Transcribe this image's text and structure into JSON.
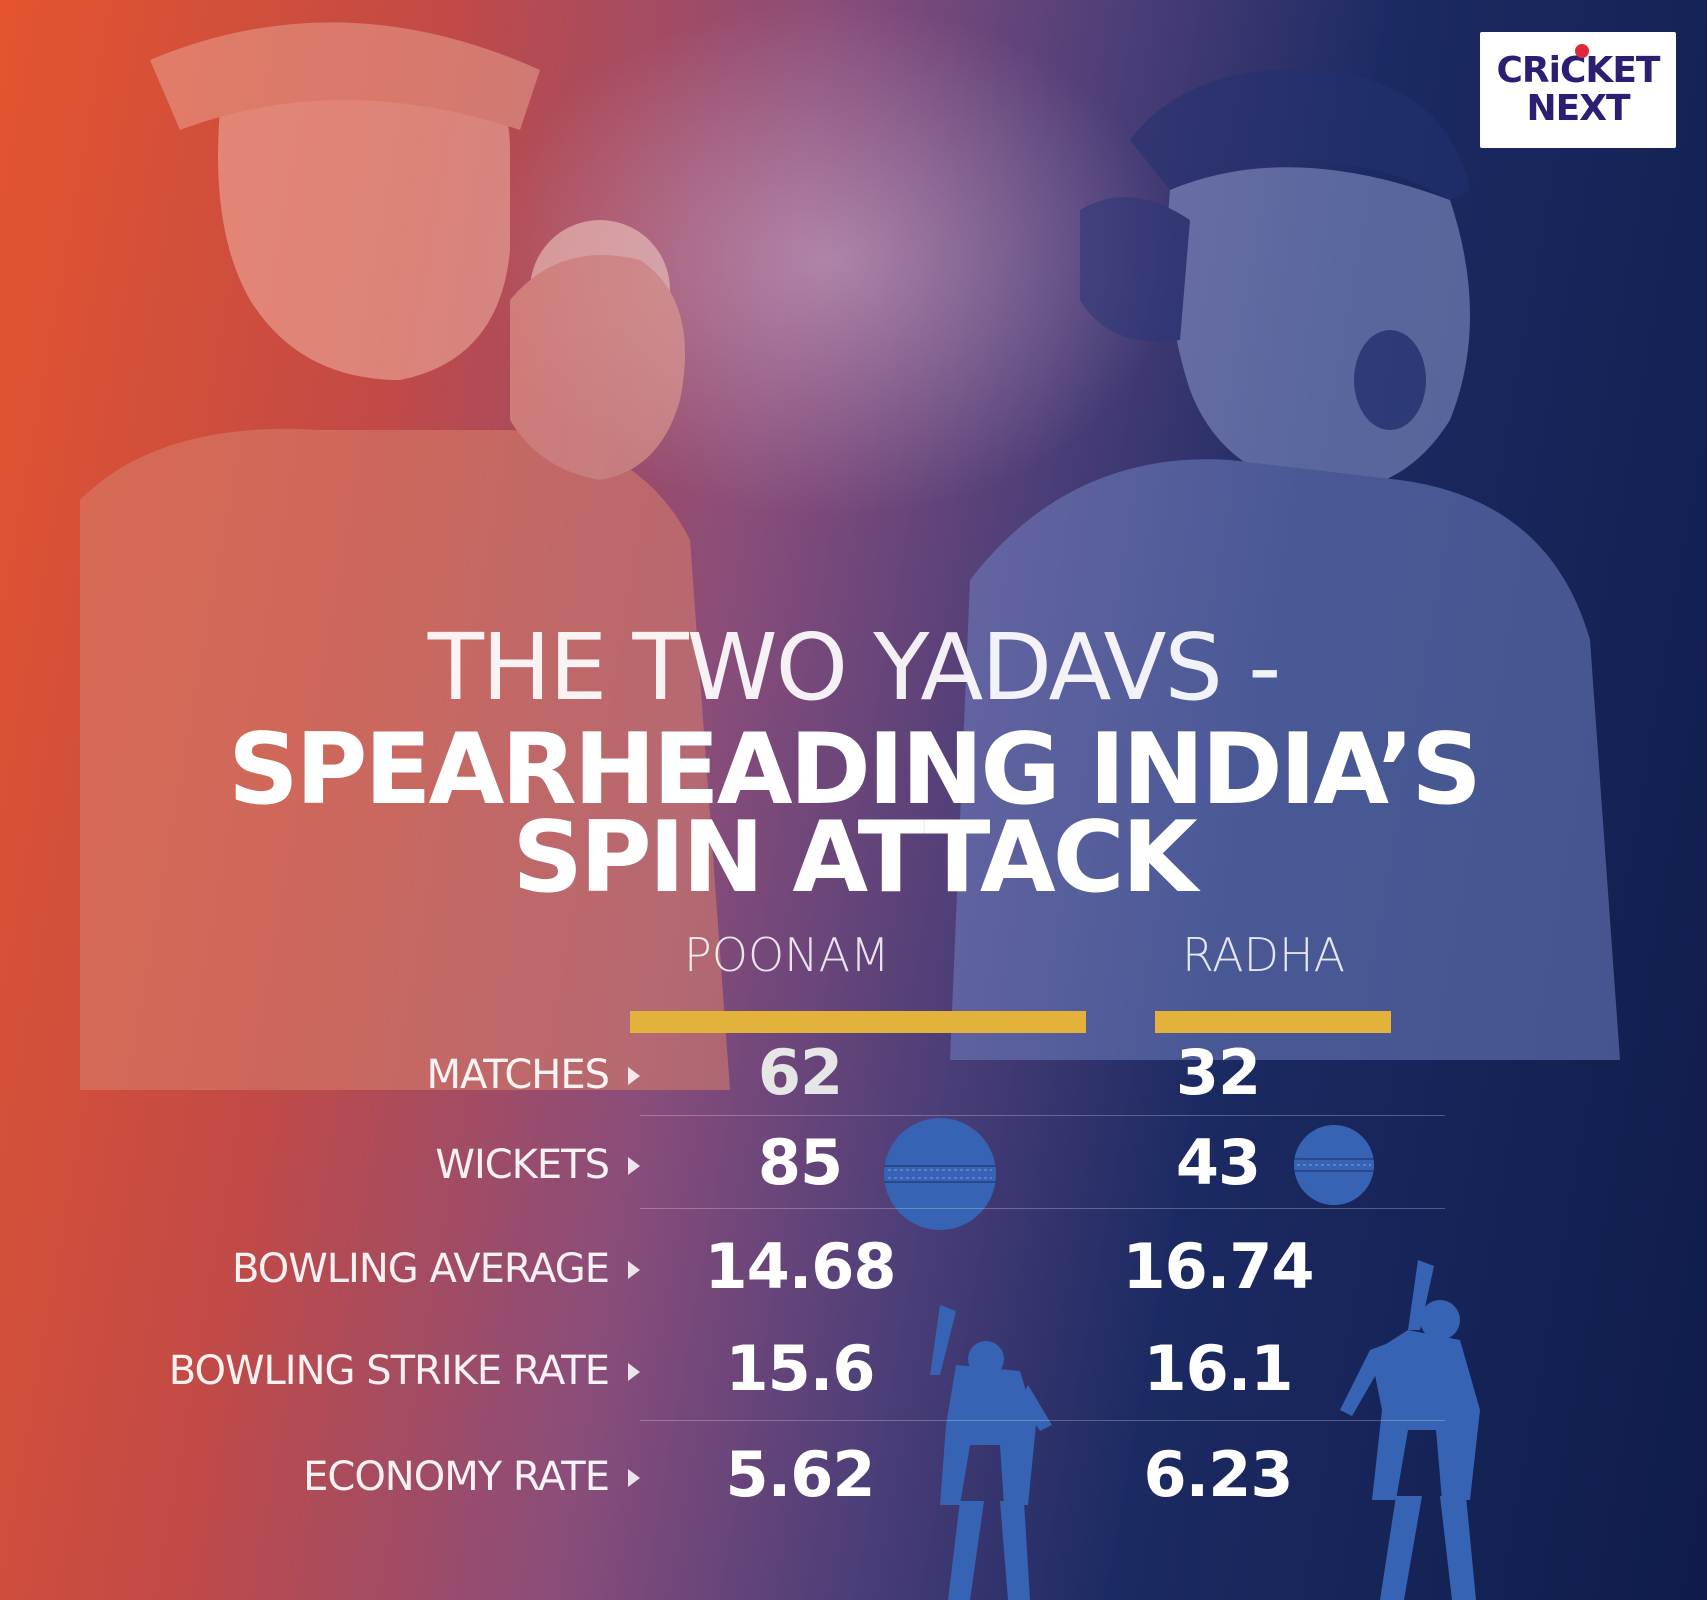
{
  "brand": {
    "logo_line1": "CRiCKET",
    "logo_line2": "NEXT"
  },
  "headline": {
    "line1": "THE TWO YADAVS -",
    "line2": "SPEARHEADING INDIA’S",
    "line3": "SPIN ATTACK"
  },
  "players": {
    "left": "POONAM",
    "right": "RADHA"
  },
  "stats": [
    {
      "label": "MATCHES",
      "left": "62",
      "right": "32"
    },
    {
      "label": "WICKETS",
      "left": "85",
      "right": "43"
    },
    {
      "label": "BOWLING AVERAGE",
      "left": "14.68",
      "right": "16.74"
    },
    {
      "label": "BOWLING STRIKE RATE",
      "left": "15.6",
      "right": "16.1"
    },
    {
      "label": "ECONOMY RATE",
      "left": "5.62",
      "right": "6.23"
    }
  ],
  "colors": {
    "accent_bar": "#e2b23a",
    "icon_blue": "#3763b4",
    "logo_text": "#2c1f73",
    "logo_dot": "#e0283c"
  },
  "icons": {
    "ball": "cricket-ball-icon",
    "bowler": "bowler-silhouette-icon"
  }
}
